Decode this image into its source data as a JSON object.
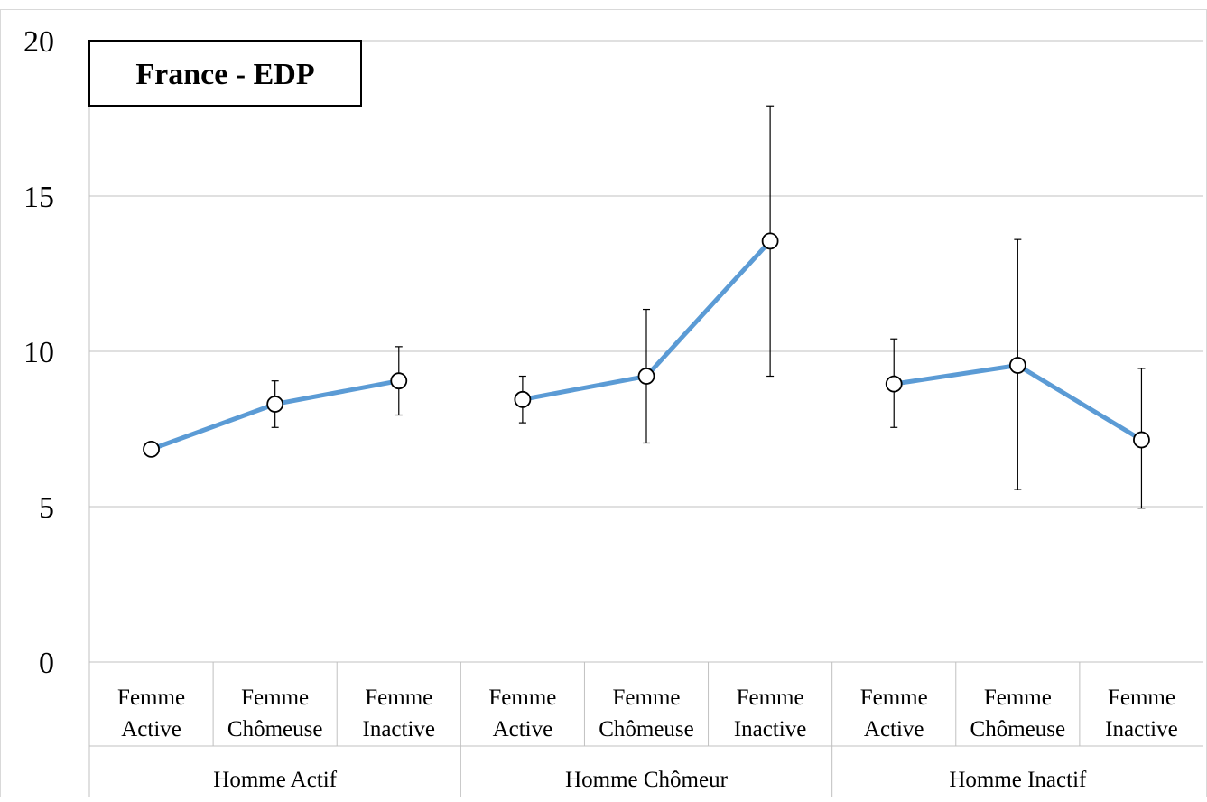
{
  "chart_data": {
    "type": "line",
    "title": "France - EDP",
    "xlabel": "",
    "ylabel": "",
    "ylim": [
      0,
      20
    ],
    "yticks": [
      0,
      5,
      10,
      15,
      20
    ],
    "grid": true,
    "legend": "none",
    "groups": [
      {
        "label": "Homme Actif",
        "categories": [
          [
            "Femme",
            "Active"
          ],
          [
            "Femme",
            "Chômeuse"
          ],
          [
            "Femme",
            "Inactive"
          ]
        ]
      },
      {
        "label": "Homme Chômeur",
        "categories": [
          [
            "Femme",
            "Active"
          ],
          [
            "Femme",
            "Chômeuse"
          ],
          [
            "Femme",
            "Inactive"
          ]
        ]
      },
      {
        "label": "Homme Inactif",
        "categories": [
          [
            "Femme",
            "Active"
          ],
          [
            "Femme",
            "Chômeuse"
          ],
          [
            "Femme",
            "Inactive"
          ]
        ]
      }
    ],
    "series": [
      {
        "values": [
          6.85,
          8.3,
          9.05,
          8.45,
          9.2,
          13.55,
          8.95,
          9.55,
          7.15
        ],
        "error_low": [
          6.85,
          7.55,
          7.95,
          7.7,
          7.05,
          9.2,
          7.55,
          5.55,
          4.95
        ],
        "error_high": [
          6.85,
          9.05,
          10.15,
          9.2,
          11.35,
          17.9,
          10.4,
          13.6,
          9.45
        ]
      }
    ],
    "colors": {
      "line": "#5b9bd5",
      "marker_fill": "#ffffff",
      "marker_stroke": "#000000",
      "grid": "#c0c0c0",
      "errorbar": "#000000"
    }
  }
}
